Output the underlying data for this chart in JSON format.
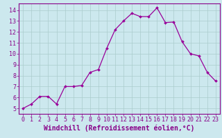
{
  "x": [
    0,
    1,
    2,
    3,
    4,
    5,
    6,
    7,
    8,
    9,
    10,
    11,
    12,
    13,
    14,
    15,
    16,
    17,
    18,
    19,
    20,
    21,
    22,
    23
  ],
  "y": [
    5.0,
    5.4,
    6.1,
    6.1,
    5.4,
    7.0,
    7.0,
    7.1,
    8.3,
    8.55,
    10.5,
    12.2,
    13.0,
    13.7,
    13.4,
    13.4,
    14.2,
    12.85,
    12.9,
    11.1,
    10.0,
    9.8,
    8.3,
    7.5
  ],
  "line_color": "#990099",
  "marker": "D",
  "marker_size": 2.0,
  "line_width": 0.9,
  "xlabel": "Windchill (Refroidissement éolien,°C)",
  "xlabel_fontsize": 7.0,
  "xlim": [
    -0.5,
    23.5
  ],
  "ylim": [
    4.5,
    14.6
  ],
  "yticks": [
    5,
    6,
    7,
    8,
    9,
    10,
    11,
    12,
    13,
    14
  ],
  "xticks": [
    0,
    1,
    2,
    3,
    4,
    5,
    6,
    7,
    8,
    9,
    10,
    11,
    12,
    13,
    14,
    15,
    16,
    17,
    18,
    19,
    20,
    21,
    22,
    23
  ],
  "bg_color": "#cce8ee",
  "grid_color": "#aacccc",
  "tick_color": "#880088",
  "tick_fontsize": 6.0,
  "axis_color": "#880088",
  "xlabel_color": "#880088"
}
